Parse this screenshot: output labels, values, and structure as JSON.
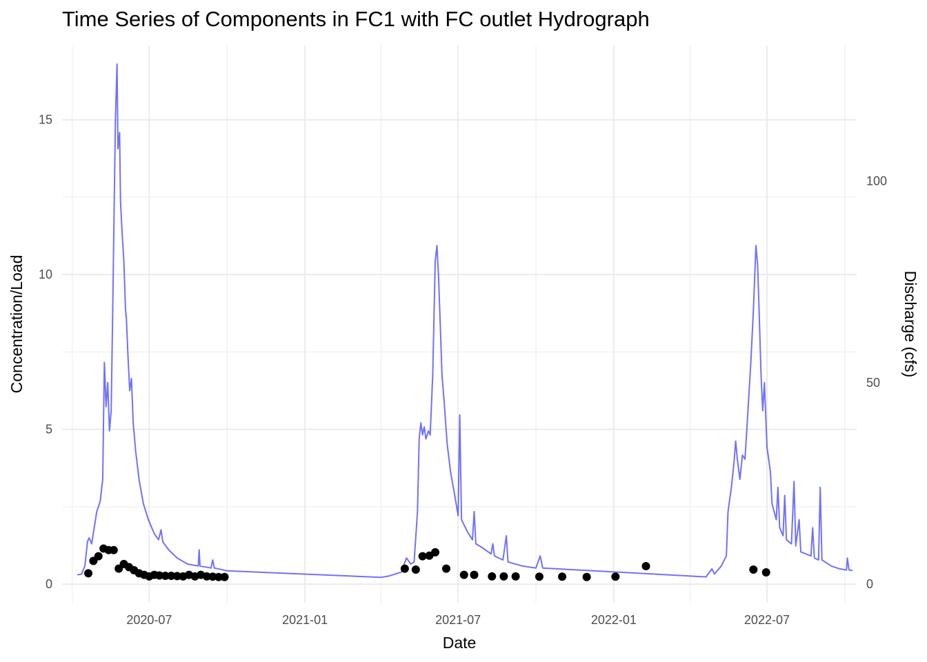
{
  "chart_data": {
    "type": "line",
    "title": "Time Series of Components in FC1 with FC outlet Hydrograph",
    "xlabel": "Date",
    "ylabel": "Concentration/Load",
    "y2label": "Discharge (cfs)",
    "grid": true,
    "legend": "none",
    "xlim": [
      "2020-03-20",
      "2022-10-15"
    ],
    "ylim": [
      -0.6,
      17.4
    ],
    "y2lim": [
      -4.6,
      133.6
    ],
    "x_ticks": [
      "2020-07",
      "2021-01",
      "2021-07",
      "2022-01",
      "2022-07"
    ],
    "y_ticks": [
      0,
      5,
      10,
      15
    ],
    "y2_ticks": [
      0,
      50,
      100
    ],
    "colors": {
      "discharge": "#3333ff",
      "points": "#000000",
      "grid": "#ebebeb"
    },
    "series": [
      {
        "type": "line",
        "axis": "right",
        "points": [
          [
            "2020-04-07",
            2.3
          ],
          [
            "2020-04-12",
            2.5
          ],
          [
            "2020-04-16",
            4.5
          ],
          [
            "2020-04-19",
            10.5
          ],
          [
            "2020-04-21",
            11.5
          ],
          [
            "2020-04-24",
            10.0
          ],
          [
            "2020-04-27",
            14.0
          ],
          [
            "2020-04-30",
            18.0
          ],
          [
            "2020-05-04",
            20.5
          ],
          [
            "2020-05-07",
            26.0
          ],
          [
            "2020-05-09",
            55.0
          ],
          [
            "2020-05-11",
            44.0
          ],
          [
            "2020-05-13",
            50.0
          ],
          [
            "2020-05-15",
            38.0
          ],
          [
            "2020-05-17",
            43.0
          ],
          [
            "2020-05-19",
            70.0
          ],
          [
            "2020-05-22",
            115.0
          ],
          [
            "2020-05-24",
            129.0
          ],
          [
            "2020-05-25",
            108.0
          ],
          [
            "2020-05-27",
            112.0
          ],
          [
            "2020-05-28",
            95.0
          ],
          [
            "2020-05-30",
            87.0
          ],
          [
            "2020-06-01",
            80.0
          ],
          [
            "2020-06-03",
            68.0
          ],
          [
            "2020-06-04",
            66.0
          ],
          [
            "2020-06-06",
            56.0
          ],
          [
            "2020-06-08",
            48.0
          ],
          [
            "2020-06-10",
            51.0
          ],
          [
            "2020-06-12",
            40.0
          ],
          [
            "2020-06-15",
            33.0
          ],
          [
            "2020-06-19",
            26.0
          ],
          [
            "2020-06-24",
            20.0
          ],
          [
            "2020-06-30",
            16.0
          ],
          [
            "2020-07-07",
            12.5
          ],
          [
            "2020-07-12",
            11.0
          ],
          [
            "2020-07-15",
            13.5
          ],
          [
            "2020-07-17",
            10.5
          ],
          [
            "2020-07-24",
            8.5
          ],
          [
            "2020-08-03",
            6.5
          ],
          [
            "2020-08-15",
            5.0
          ],
          [
            "2020-08-28",
            4.5
          ],
          [
            "2020-08-29",
            8.5
          ],
          [
            "2020-08-30",
            4.5
          ],
          [
            "2020-09-12",
            4.0
          ],
          [
            "2020-09-14",
            6.0
          ],
          [
            "2020-09-16",
            4.0
          ],
          [
            "2020-10-01",
            3.3
          ],
          [
            "2021-04-01",
            1.7
          ],
          [
            "2021-04-10",
            2.0
          ],
          [
            "2021-04-25",
            3.0
          ],
          [
            "2021-05-01",
            6.5
          ],
          [
            "2021-05-06",
            5.0
          ],
          [
            "2021-05-10",
            5.5
          ],
          [
            "2021-05-14",
            18.0
          ],
          [
            "2021-05-16",
            36.0
          ],
          [
            "2021-05-18",
            40.0
          ],
          [
            "2021-05-20",
            37.0
          ],
          [
            "2021-05-22",
            39.0
          ],
          [
            "2021-05-24",
            36.0
          ],
          [
            "2021-05-27",
            38.0
          ],
          [
            "2021-05-29",
            37.0
          ],
          [
            "2021-06-01",
            52.0
          ],
          [
            "2021-06-04",
            80.0
          ],
          [
            "2021-06-06",
            84.0
          ],
          [
            "2021-06-08",
            76.0
          ],
          [
            "2021-06-10",
            64.0
          ],
          [
            "2021-06-12",
            52.0
          ],
          [
            "2021-06-15",
            44.0
          ],
          [
            "2021-06-18",
            35.0
          ],
          [
            "2021-06-22",
            28.0
          ],
          [
            "2021-06-27",
            22.0
          ],
          [
            "2021-07-01",
            17.0
          ],
          [
            "2021-07-03",
            42.0
          ],
          [
            "2021-07-05",
            16.0
          ],
          [
            "2021-07-12",
            13.0
          ],
          [
            "2021-07-18",
            11.0
          ],
          [
            "2021-07-20",
            18.0
          ],
          [
            "2021-07-22",
            10.0
          ],
          [
            "2021-07-30",
            9.0
          ],
          [
            "2021-08-09",
            7.5
          ],
          [
            "2021-08-11",
            10.0
          ],
          [
            "2021-08-13",
            7.0
          ],
          [
            "2021-08-23",
            6.0
          ],
          [
            "2021-08-27",
            12.0
          ],
          [
            "2021-08-29",
            5.5
          ],
          [
            "2021-09-15",
            4.5
          ],
          [
            "2021-10-01",
            4.0
          ],
          [
            "2021-10-06",
            7.0
          ],
          [
            "2021-10-09",
            4.0
          ],
          [
            "2022-04-20",
            1.8
          ],
          [
            "2022-04-27",
            3.8
          ],
          [
            "2022-04-30",
            2.5
          ],
          [
            "2022-05-08",
            4.5
          ],
          [
            "2022-05-14",
            7.0
          ],
          [
            "2022-05-16",
            18.0
          ],
          [
            "2022-05-20",
            24.0
          ],
          [
            "2022-05-23",
            30.0
          ],
          [
            "2022-05-25",
            35.5
          ],
          [
            "2022-05-27",
            31.0
          ],
          [
            "2022-05-30",
            26.0
          ],
          [
            "2022-06-02",
            32.0
          ],
          [
            "2022-06-05",
            31.0
          ],
          [
            "2022-06-08",
            41.0
          ],
          [
            "2022-06-12",
            55.0
          ],
          [
            "2022-06-15",
            68.0
          ],
          [
            "2022-06-18",
            84.0
          ],
          [
            "2022-06-20",
            79.0
          ],
          [
            "2022-06-22",
            66.0
          ],
          [
            "2022-06-24",
            52.0
          ],
          [
            "2022-06-26",
            43.0
          ],
          [
            "2022-06-28",
            50.0
          ],
          [
            "2022-07-01",
            34.0
          ],
          [
            "2022-07-05",
            28.0
          ],
          [
            "2022-07-07",
            20.0
          ],
          [
            "2022-07-12",
            16.0
          ],
          [
            "2022-07-14",
            24.0
          ],
          [
            "2022-07-16",
            14.0
          ],
          [
            "2022-07-20",
            12.0
          ],
          [
            "2022-07-22",
            22.0
          ],
          [
            "2022-07-24",
            11.0
          ],
          [
            "2022-07-30",
            10.0
          ],
          [
            "2022-08-02",
            25.5
          ],
          [
            "2022-08-04",
            9.5
          ],
          [
            "2022-08-08",
            16.0
          ],
          [
            "2022-08-10",
            8.0
          ],
          [
            "2022-08-22",
            7.0
          ],
          [
            "2022-08-24",
            14.0
          ],
          [
            "2022-08-26",
            6.5
          ],
          [
            "2022-08-31",
            6.0
          ],
          [
            "2022-09-02",
            24.0
          ],
          [
            "2022-09-04",
            6.0
          ],
          [
            "2022-09-15",
            4.5
          ],
          [
            "2022-09-25",
            3.8
          ],
          [
            "2022-10-03",
            3.5
          ],
          [
            "2022-10-04",
            6.5
          ],
          [
            "2022-10-06",
            3.5
          ],
          [
            "2022-10-10",
            3.4
          ]
        ]
      },
      {
        "type": "scatter",
        "axis": "left",
        "points": [
          [
            "2020-04-20",
            0.35
          ],
          [
            "2020-04-26",
            0.75
          ],
          [
            "2020-05-02",
            0.9
          ],
          [
            "2020-05-08",
            1.15
          ],
          [
            "2020-05-14",
            1.1
          ],
          [
            "2020-05-20",
            1.1
          ],
          [
            "2020-05-26",
            0.5
          ],
          [
            "2020-06-01",
            0.65
          ],
          [
            "2020-06-07",
            0.55
          ],
          [
            "2020-06-13",
            0.45
          ],
          [
            "2020-06-19",
            0.35
          ],
          [
            "2020-06-25",
            0.3
          ],
          [
            "2020-07-01",
            0.25
          ],
          [
            "2020-07-07",
            0.3
          ],
          [
            "2020-07-13",
            0.28
          ],
          [
            "2020-07-20",
            0.27
          ],
          [
            "2020-07-27",
            0.27
          ],
          [
            "2020-08-03",
            0.26
          ],
          [
            "2020-08-10",
            0.25
          ],
          [
            "2020-08-17",
            0.3
          ],
          [
            "2020-08-24",
            0.25
          ],
          [
            "2020-08-31",
            0.3
          ],
          [
            "2020-09-07",
            0.25
          ],
          [
            "2020-09-14",
            0.24
          ],
          [
            "2020-09-21",
            0.23
          ],
          [
            "2020-09-28",
            0.23
          ],
          [
            "2021-04-29",
            0.5
          ],
          [
            "2021-05-12",
            0.47
          ],
          [
            "2021-05-20",
            0.9
          ],
          [
            "2021-05-28",
            0.92
          ],
          [
            "2021-06-04",
            1.03
          ],
          [
            "2021-06-17",
            0.5
          ],
          [
            "2021-07-08",
            0.3
          ],
          [
            "2021-07-20",
            0.3
          ],
          [
            "2021-08-10",
            0.25
          ],
          [
            "2021-08-24",
            0.25
          ],
          [
            "2021-09-07",
            0.25
          ],
          [
            "2021-10-05",
            0.24
          ],
          [
            "2021-11-01",
            0.24
          ],
          [
            "2021-11-30",
            0.23
          ],
          [
            "2022-01-03",
            0.24
          ],
          [
            "2022-02-08",
            0.58
          ],
          [
            "2022-06-15",
            0.47
          ],
          [
            "2022-06-30",
            0.38
          ]
        ]
      }
    ]
  }
}
